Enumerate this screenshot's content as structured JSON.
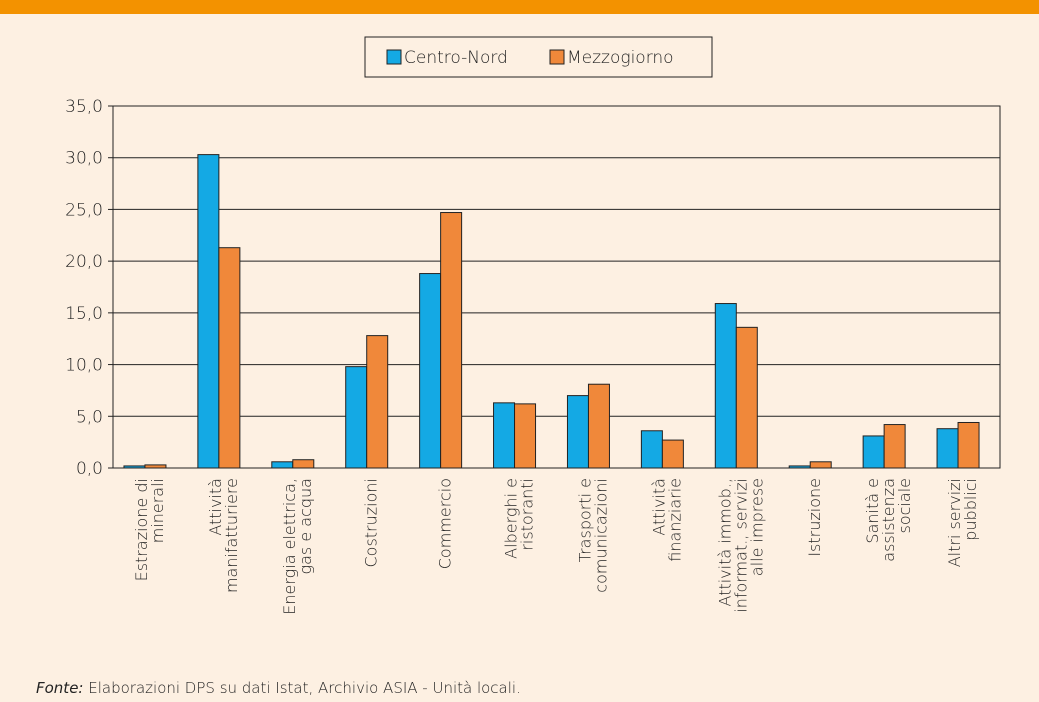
{
  "chart_data": {
    "type": "bar",
    "categories": [
      "Estrazione di\nminerali",
      "Attività\nmanifatturiere",
      "Energia elettrica,\ngas e acqua",
      "Costruzioni",
      "Commercio",
      "Alberghi e\nristoranti",
      "Trasporti e\ncomunicazioni",
      "Attività\nfinanziarie",
      "Attività immob.,\ninformat., servizi\nalle imprese",
      "Istruzione",
      "Sanità e\nassistenza\nsociale",
      "Altri servizi\npubblici"
    ],
    "series": [
      {
        "name": "Centro-Nord",
        "color": "#14a9e4",
        "values": [
          0.2,
          30.3,
          0.6,
          9.8,
          18.8,
          6.3,
          7.0,
          3.6,
          15.9,
          0.2,
          3.1,
          3.8
        ]
      },
      {
        "name": "Mezzogiorno",
        "color": "#f0883a",
        "values": [
          0.3,
          21.3,
          0.8,
          12.8,
          24.7,
          6.2,
          8.1,
          2.7,
          13.6,
          0.6,
          4.2,
          4.4
        ]
      }
    ],
    "ylim": [
      0,
      35
    ],
    "yticks": [
      {
        "value": 0,
        "label": "0,0"
      },
      {
        "value": 5,
        "label": "5,0"
      },
      {
        "value": 10,
        "label": "10,0"
      },
      {
        "value": 15,
        "label": "15,0"
      },
      {
        "value": 20,
        "label": "20,0"
      },
      {
        "value": 25,
        "label": "25,0"
      },
      {
        "value": 30,
        "label": "30,0"
      },
      {
        "value": 35,
        "label": "35,0"
      }
    ],
    "grid": true,
    "legend": "top",
    "source_label": "Fonte:",
    "source": " Elaborazioni DPS su dati Istat, Archivio ASIA - Unità locali."
  }
}
